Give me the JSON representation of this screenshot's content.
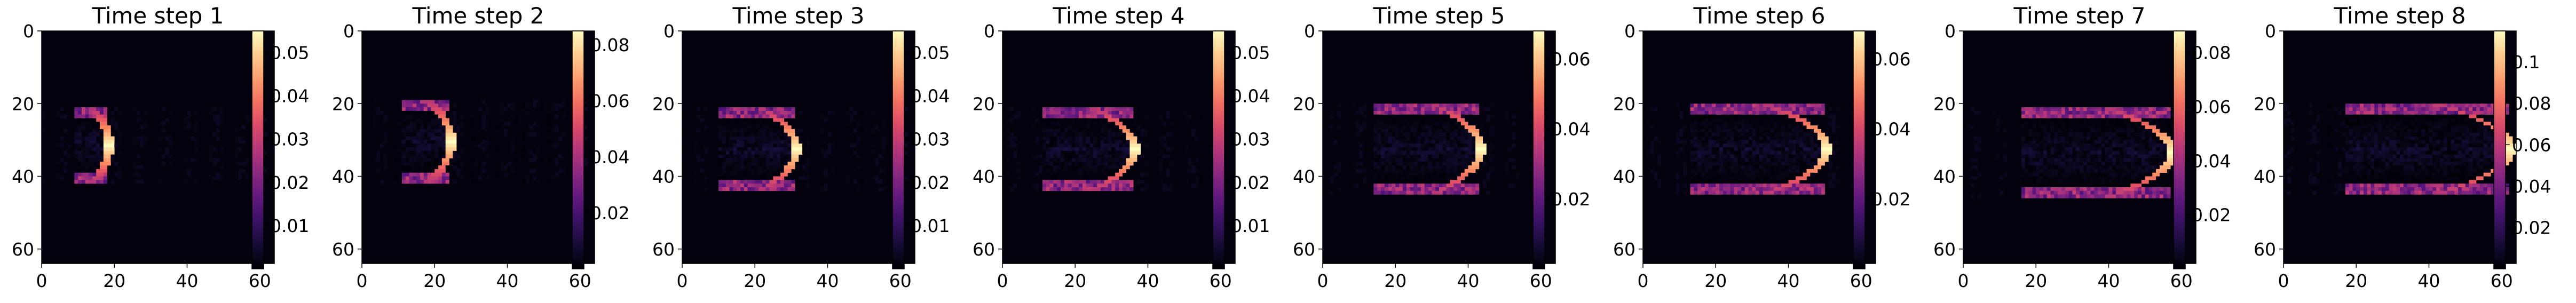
{
  "chart_data": {
    "type": "heatmap",
    "colormap": "magma",
    "grid": false,
    "panels": [
      {
        "title": "Time step 1",
        "x_ticks": [
          0,
          20,
          40,
          60
        ],
        "y_ticks": [
          0,
          20,
          40,
          60
        ],
        "extent": [
          0,
          64
        ],
        "colorbar": {
          "range": [
            0,
            0.055
          ],
          "ticks": [
            0.01,
            0.02,
            0.03,
            0.04,
            0.05
          ]
        },
        "structure": {
          "front_x": 18,
          "width": 10,
          "cy": 31,
          "half_height": 9,
          "peak": 0.055
        }
      },
      {
        "title": "Time step 2",
        "x_ticks": [
          0,
          20,
          40,
          60
        ],
        "y_ticks": [
          0,
          20,
          40,
          60
        ],
        "extent": [
          0,
          64
        ],
        "colorbar": {
          "range": [
            0,
            0.085
          ],
          "ticks": [
            0.02,
            0.04,
            0.06,
            0.08
          ]
        },
        "structure": {
          "front_x": 24,
          "width": 14,
          "cy": 30,
          "half_height": 10,
          "peak": 0.085
        }
      },
      {
        "title": "Time step 3",
        "x_ticks": [
          0,
          20,
          40,
          60
        ],
        "y_ticks": [
          0,
          20,
          40,
          60
        ],
        "extent": [
          0,
          64
        ],
        "colorbar": {
          "range": [
            0,
            0.055
          ],
          "ticks": [
            0.01,
            0.02,
            0.03,
            0.04,
            0.05
          ]
        },
        "structure": {
          "front_x": 31,
          "width": 22,
          "cy": 32,
          "half_height": 10,
          "peak": 0.055
        }
      },
      {
        "title": "Time step 4",
        "x_ticks": [
          0,
          20,
          40,
          60
        ],
        "y_ticks": [
          0,
          20,
          40,
          60
        ],
        "extent": [
          0,
          64
        ],
        "colorbar": {
          "range": [
            0,
            0.055
          ],
          "ticks": [
            0.01,
            0.02,
            0.03,
            0.04,
            0.05
          ]
        },
        "structure": {
          "front_x": 36,
          "width": 26,
          "cy": 32,
          "half_height": 10,
          "peak": 0.055
        }
      },
      {
        "title": "Time step 5",
        "x_ticks": [
          0,
          20,
          40,
          60
        ],
        "y_ticks": [
          0,
          20,
          40,
          60
        ],
        "extent": [
          0,
          64
        ],
        "colorbar": {
          "range": [
            0,
            0.068
          ],
          "ticks": [
            0.02,
            0.04,
            0.06
          ]
        },
        "structure": {
          "front_x": 43,
          "width": 30,
          "cy": 32,
          "half_height": 11,
          "peak": 0.068
        }
      },
      {
        "title": "Time step 6",
        "x_ticks": [
          0,
          20,
          40,
          60
        ],
        "y_ticks": [
          0,
          20,
          40,
          60
        ],
        "extent": [
          0,
          64
        ],
        "colorbar": {
          "range": [
            0,
            0.068
          ],
          "ticks": [
            0.02,
            0.04,
            0.06
          ]
        },
        "structure": {
          "front_x": 50,
          "width": 38,
          "cy": 32,
          "half_height": 11,
          "peak": 0.068
        }
      },
      {
        "title": "Time step 7",
        "x_ticks": [
          0,
          20,
          40,
          60
        ],
        "y_ticks": [
          0,
          20,
          40,
          60
        ],
        "extent": [
          0,
          64
        ],
        "colorbar": {
          "range": [
            0,
            0.088
          ],
          "ticks": [
            0.02,
            0.04,
            0.06,
            0.08
          ]
        },
        "structure": {
          "front_x": 57,
          "width": 42,
          "cy": 33,
          "half_height": 11,
          "peak": 0.088
        }
      },
      {
        "title": "Time step 8",
        "x_ticks": [
          0,
          20,
          40,
          60
        ],
        "y_ticks": [
          0,
          20,
          40,
          60
        ],
        "extent": [
          0,
          64
        ],
        "colorbar": {
          "range": [
            0,
            0.115
          ],
          "ticks": [
            0.02,
            0.04,
            0.06,
            0.08,
            0.1
          ]
        },
        "structure": {
          "front_x": 62,
          "width": 46,
          "cy": 32,
          "half_height": 11,
          "peak": 0.115
        }
      }
    ]
  }
}
